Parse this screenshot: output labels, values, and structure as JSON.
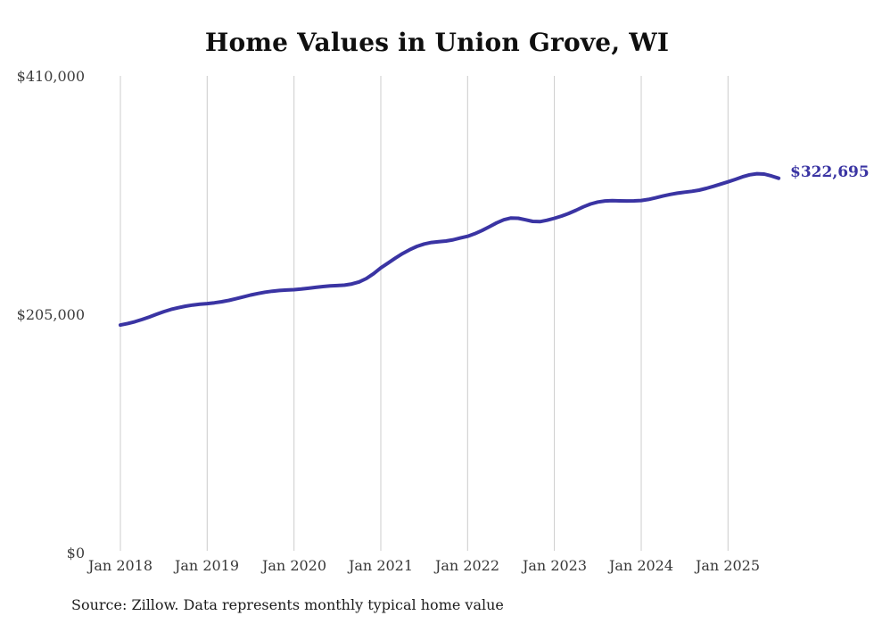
{
  "title": "Home Values in Union Grove, WI",
  "source_note": "Source: Zillow. Data represents monthly typical home value",
  "end_label": "$322,695",
  "colors": {
    "line": "#3a34a3",
    "end_label": "#3a34a3",
    "grid": "#cccccc",
    "title": "#0f0f0f",
    "axis_text": "#3d3d3d",
    "background": "#ffffff"
  },
  "chart_data": {
    "type": "line",
    "title": "Home Values in Union Grove, WI",
    "xlabel": "",
    "ylabel": "",
    "ylim": [
      0,
      410000
    ],
    "grid": "vertical-only",
    "legend": "none",
    "y_tick_labels": [
      "$410,000",
      "$205,000",
      "$0"
    ],
    "y_tick_values": [
      410000,
      205000,
      0
    ],
    "x_tick_labels": [
      "Jan 2018",
      "Jan 2019",
      "Jan 2020",
      "Jan 2021",
      "Jan 2022",
      "Jan 2023",
      "Jan 2024",
      "Jan 2025"
    ],
    "x_start_month": "2018-01",
    "x_end_month": "2025-08",
    "end_value": 322695,
    "series": [
      {
        "name": "Monthly typical home value",
        "values": [
          196500,
          197800,
          199300,
          201200,
          203400,
          205800,
          208000,
          209900,
          211400,
          212700,
          213700,
          214400,
          214900,
          215600,
          216500,
          217700,
          219100,
          220700,
          222300,
          223600,
          224700,
          225600,
          226200,
          226600,
          226900,
          227400,
          228100,
          228900,
          229600,
          230100,
          230400,
          230800,
          231800,
          233600,
          236500,
          240600,
          245600,
          249800,
          254000,
          257900,
          261300,
          264100,
          266200,
          267500,
          268200,
          268700,
          269800,
          271300,
          272800,
          275000,
          277800,
          281000,
          284300,
          287000,
          288500,
          288300,
          287000,
          285600,
          285400,
          286600,
          288300,
          290200,
          292500,
          295200,
          298100,
          300600,
          302300,
          303200,
          303400,
          303300,
          303200,
          303300,
          303600,
          304500,
          305900,
          307400,
          308800,
          309900,
          310700,
          311500,
          312500,
          314000,
          315800,
          317700,
          319600,
          321700,
          323900,
          325700,
          326600,
          326300,
          324700,
          322695
        ]
      }
    ]
  }
}
